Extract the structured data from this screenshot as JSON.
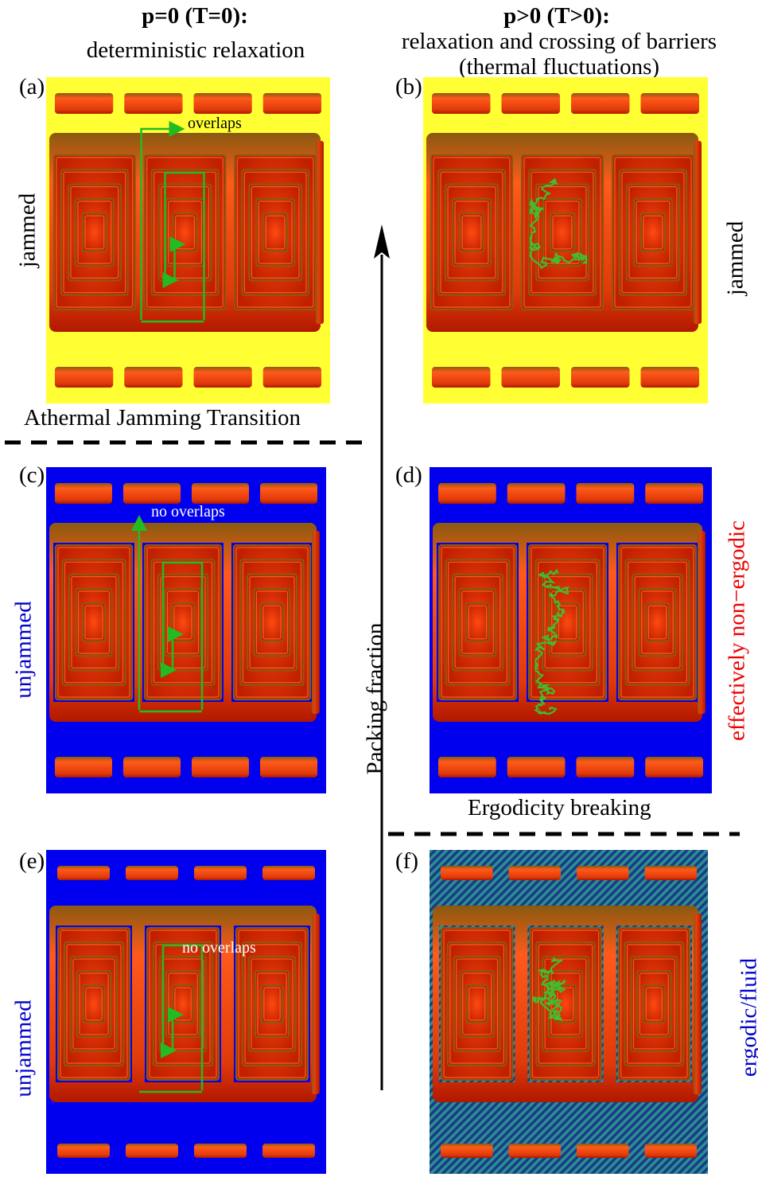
{
  "headers": {
    "left_title": "p=0 (T=0):",
    "left_subtitle": "deterministic relaxation",
    "right_title": "p>0 (T>0):",
    "right_subtitle_1": "relaxation and crossing of barriers",
    "right_subtitle_2": "(thermal fluctuations)"
  },
  "panels": [
    {
      "id": "a",
      "label": "(a)",
      "bg": "#ffff33",
      "side_label": "jammed",
      "side_color": "#000000",
      "annotation": "overlaps",
      "path": "deterministic",
      "overlap_style": "overlap"
    },
    {
      "id": "b",
      "label": "(b)",
      "bg": "#ffff33",
      "side_label": "jammed",
      "side_color": "#000000",
      "annotation": "",
      "path": "random",
      "overlap_style": "overlap"
    },
    {
      "id": "c",
      "label": "(c)",
      "bg": "#0000ee",
      "side_label": "unjammed",
      "side_color": "#0000cc",
      "annotation": "no overlaps",
      "path": "deterministic",
      "overlap_style": "touch"
    },
    {
      "id": "d",
      "label": "(d)",
      "bg": "#0000ee",
      "side_label": "effectively non−ergodic",
      "side_color": "#ee0000",
      "annotation": "",
      "path": "random",
      "overlap_style": "touch"
    },
    {
      "id": "e",
      "label": "(e)",
      "bg": "#0000ee",
      "side_label": "unjammed",
      "side_color": "#0000cc",
      "annotation": "no overlaps",
      "path": "deterministic",
      "overlap_style": "gap"
    },
    {
      "id": "f",
      "label": "(f)",
      "bg": "hatched",
      "side_label": "ergodic/fluid",
      "side_color": "#0000cc",
      "annotation": "",
      "path": "random",
      "overlap_style": "gap"
    }
  ],
  "transitions": {
    "athermal": "Athermal Jamming Transition",
    "ergodicity": "Ergodicity breaking"
  },
  "axis": {
    "label": "Packing fraction"
  },
  "colors": {
    "yellow": "#ffff33",
    "blue": "#0000ee",
    "teal_hatch": "#2a8f8f",
    "brick_light": "#ff5a1a",
    "brick_dark": "#b01800",
    "brick_edge": "#8a5a10",
    "path_green": "#22bb22"
  }
}
